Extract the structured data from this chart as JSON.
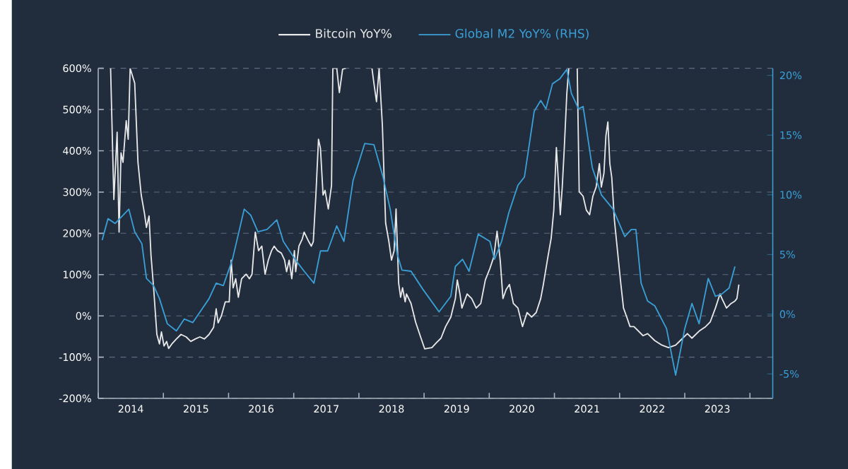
{
  "chart_data": {
    "type": "line",
    "series": [
      {
        "name": "Bitcoin YoY%",
        "color": "#e8e8e8",
        "axis": "y",
        "x": [
          2014.19,
          2014.24,
          2014.29,
          2014.32,
          2014.35,
          2014.38,
          2014.43,
          2014.46,
          2014.49,
          2014.56,
          2014.61,
          2014.66,
          2014.71,
          2014.74,
          2014.78,
          2014.81,
          2014.85,
          2014.9,
          2014.94,
          2014.97,
          2015.01,
          2015.05,
          2015.08,
          2015.13,
          2015.2,
          2015.27,
          2015.35,
          2015.42,
          2015.49,
          2015.56,
          2015.63,
          2015.7,
          2015.77,
          2015.81,
          2015.84,
          2015.89,
          2015.95,
          2016.01,
          2016.04,
          2016.07,
          2016.11,
          2016.15,
          2016.2,
          2016.27,
          2016.32,
          2016.36,
          2016.41,
          2016.46,
          2016.51,
          2016.56,
          2016.61,
          2016.66,
          2016.7,
          2016.75,
          2016.81,
          2016.86,
          2016.89,
          2016.93,
          2016.97,
          2017.01,
          2017.03,
          2017.08,
          2017.13,
          2017.16,
          2017.23,
          2017.27,
          2017.3,
          2017.34,
          2017.38,
          2017.41,
          2017.45,
          2017.48,
          2017.53,
          2017.58,
          2017.6,
          2017.66,
          2017.7,
          2017.72,
          2017.75,
          2017.8,
          2018.0,
          2018.2,
          2018.23,
          2018.27,
          2018.31,
          2018.36,
          2018.41,
          2018.46,
          2018.5,
          2018.54,
          2018.57,
          2018.61,
          2018.64,
          2018.67,
          2018.71,
          2018.73,
          2018.8,
          2018.87,
          2018.94,
          2019.01,
          2019.12,
          2019.19,
          2019.26,
          2019.33,
          2019.41,
          2019.48,
          2019.51,
          2019.55,
          2019.58,
          2019.66,
          2019.73,
          2019.8,
          2019.87,
          2019.94,
          2020.01,
          2020.07,
          2020.12,
          2020.17,
          2020.21,
          2020.26,
          2020.31,
          2020.37,
          2020.44,
          2020.51,
          2020.58,
          2020.65,
          2020.72,
          2020.79,
          2020.83,
          2020.9,
          2020.95,
          2020.99,
          2021.03,
          2021.07,
          2021.09,
          2021.12,
          2021.15,
          2021.19,
          2021.22,
          2021.29,
          2021.35,
          2021.38,
          2021.44,
          2021.49,
          2021.54,
          2021.59,
          2021.64,
          2021.69,
          2021.72,
          2021.76,
          2021.79,
          2021.82,
          2021.85,
          2021.88,
          2021.92,
          2021.97,
          2022.02,
          2022.06,
          2022.11,
          2022.16,
          2022.22,
          2022.29,
          2022.36,
          2022.43,
          2022.54,
          2022.65,
          2022.75,
          2022.86,
          2022.93,
          2023.04,
          2023.11,
          2023.22,
          2023.32,
          2023.39,
          2023.47,
          2023.54,
          2023.57,
          2023.64,
          2023.71,
          2023.77,
          2023.8,
          2023.83
        ],
        "values": [
          600,
          282,
          445,
          203,
          395,
          372,
          473,
          428,
          600,
          564,
          372,
          293,
          248,
          214,
          242,
          147,
          68,
          -45,
          -68,
          -39,
          -73,
          -62,
          -79,
          -68,
          -56,
          -45,
          -51,
          -62,
          -56,
          -51,
          -56,
          -45,
          -28,
          17,
          -17,
          0,
          34,
          34,
          135,
          68,
          90,
          45,
          90,
          101,
          90,
          101,
          203,
          158,
          169,
          101,
          135,
          158,
          169,
          158,
          152,
          135,
          107,
          135,
          90,
          158,
          107,
          169,
          186,
          203,
          180,
          169,
          180,
          293,
          428,
          406,
          293,
          304,
          259,
          316,
          600,
          600,
          541,
          564,
          598,
          600,
          null,
          600,
          564,
          519,
          600,
          462,
          225,
          180,
          135,
          158,
          259,
          79,
          45,
          68,
          34,
          53,
          30,
          -15,
          -48,
          -80,
          -77,
          -65,
          -54,
          -26,
          -3,
          42,
          87,
          53,
          19,
          53,
          42,
          19,
          30,
          87,
          115,
          143,
          205,
          132,
          42,
          64,
          76,
          30,
          19,
          -26,
          8,
          -3,
          8,
          42,
          76,
          143,
          188,
          256,
          408,
          301,
          245,
          312,
          402,
          538,
          600,
          null,
          600,
          301,
          290,
          256,
          245,
          290,
          312,
          369,
          312,
          346,
          436,
          470,
          369,
          335,
          233,
          154,
          76,
          19,
          -3,
          -26,
          -26,
          -37,
          -48,
          -43,
          -60,
          -71,
          -77,
          -71,
          -60,
          -43,
          -54,
          -37,
          -26,
          -15,
          19,
          53,
          42,
          19,
          30,
          36,
          42,
          76
        ]
      },
      {
        "name": "Global M2 YoY% (RHS)",
        "color": "#3a9fd6",
        "axis": "y2",
        "x": [
          2014.06,
          2014.15,
          2014.26,
          2014.47,
          2014.56,
          2014.67,
          2014.74,
          2014.85,
          2014.94,
          2015.06,
          2015.2,
          2015.32,
          2015.45,
          2015.6,
          2015.7,
          2015.81,
          2015.92,
          2016.06,
          2016.24,
          2016.34,
          2016.45,
          2016.59,
          2016.74,
          2016.84,
          2017.02,
          2017.16,
          2017.31,
          2017.41,
          2017.52,
          2017.66,
          2017.77,
          2017.91,
          2018.09,
          2018.23,
          2018.37,
          2018.48,
          2018.59,
          2018.66,
          2018.8,
          2018.98,
          2019.23,
          2019.41,
          2019.48,
          2019.59,
          2019.69,
          2019.83,
          2020.01,
          2020.08,
          2020.19,
          2020.3,
          2020.44,
          2020.54,
          2020.69,
          2020.79,
          2020.87,
          2020.97,
          2021.08,
          2021.19,
          2021.26,
          2021.37,
          2021.44,
          2021.58,
          2021.72,
          2021.9,
          2022.08,
          2022.18,
          2022.25,
          2022.33,
          2022.43,
          2022.54,
          2022.72,
          2022.86,
          2023.0,
          2023.11,
          2023.22,
          2023.36,
          2023.47,
          2023.57,
          2023.68,
          2023.77
        ],
        "values": [
          6.2,
          8.0,
          7.6,
          8.8,
          6.9,
          5.9,
          3.0,
          2.4,
          1.3,
          -0.8,
          -1.4,
          -0.4,
          -0.7,
          0.5,
          1.3,
          2.6,
          2.4,
          4.6,
          8.8,
          8.3,
          6.9,
          7.1,
          7.9,
          6.1,
          4.6,
          3.6,
          2.6,
          5.3,
          5.3,
          7.4,
          6.1,
          11.2,
          14.3,
          14.2,
          11.5,
          8.8,
          5.0,
          3.7,
          3.6,
          2.1,
          0.2,
          1.5,
          4.0,
          4.6,
          3.6,
          6.7,
          6.1,
          4.6,
          6.1,
          8.5,
          10.8,
          11.5,
          17.0,
          17.9,
          17.2,
          19.3,
          19.7,
          20.5,
          18.5,
          17.2,
          17.4,
          12.3,
          10.0,
          8.8,
          6.5,
          7.1,
          7.1,
          2.6,
          1.1,
          0.7,
          -1.2,
          -5.1,
          -1.2,
          0.9,
          -0.8,
          3.0,
          1.5,
          1.7,
          2.2,
          4.0
        ]
      }
    ],
    "xlim": [
      2014.0,
      2024.35
    ],
    "xticks": [
      {
        "value": 2014,
        "label": null
      },
      {
        "value": 2014.5,
        "label": "2014"
      },
      {
        "value": 2015,
        "label": null
      },
      {
        "value": 2015.5,
        "label": "2015"
      },
      {
        "value": 2016,
        "label": null
      },
      {
        "value": 2016.5,
        "label": "2016"
      },
      {
        "value": 2017,
        "label": null
      },
      {
        "value": 2017.5,
        "label": "2017"
      },
      {
        "value": 2018,
        "label": null
      },
      {
        "value": 2018.5,
        "label": "2018"
      },
      {
        "value": 2019,
        "label": null
      },
      {
        "value": 2019.5,
        "label": "2019"
      },
      {
        "value": 2020,
        "label": null
      },
      {
        "value": 2020.5,
        "label": "2020"
      },
      {
        "value": 2021,
        "label": null
      },
      {
        "value": 2021.5,
        "label": "2021"
      },
      {
        "value": 2022,
        "label": null
      },
      {
        "value": 2022.5,
        "label": "2022"
      },
      {
        "value": 2023,
        "label": null
      },
      {
        "value": 2023.5,
        "label": "2023"
      },
      {
        "value": 2024,
        "label": null
      }
    ],
    "ylim": [
      -200,
      600
    ],
    "yticks": [
      {
        "value": -200,
        "label": "-200%"
      },
      {
        "value": -100,
        "label": "-100%"
      },
      {
        "value": 0,
        "label": "0%"
      },
      {
        "value": 100,
        "label": "100%"
      },
      {
        "value": 200,
        "label": "200%"
      },
      {
        "value": 300,
        "label": "300%"
      },
      {
        "value": 400,
        "label": "400%"
      },
      {
        "value": 500,
        "label": "500%"
      },
      {
        "value": 600,
        "label": "600%"
      }
    ],
    "y2lim": [
      -7.05,
      20.6
    ],
    "y2ticks": [
      {
        "value": -5,
        "label": "-5%"
      },
      {
        "value": 0,
        "label": "0%"
      },
      {
        "value": 5,
        "label": "5%"
      },
      {
        "value": 10,
        "label": "10%"
      },
      {
        "value": 15,
        "label": "15%"
      },
      {
        "value": 20,
        "label": "20%"
      }
    ],
    "grid": "y",
    "legend": "top"
  }
}
